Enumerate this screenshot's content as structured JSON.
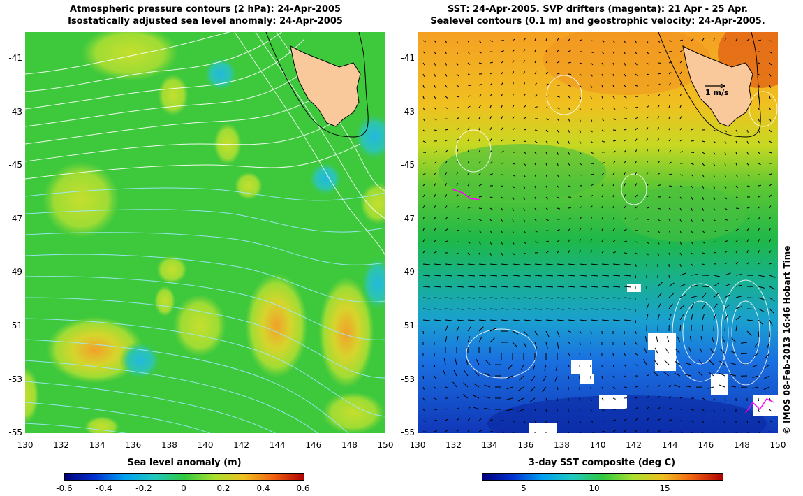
{
  "left": {
    "title_line1": "Atmospheric pressure contours (2 hPa): 24-Apr-2005",
    "title_line2": "Isostatically adjusted sea level anomaly: 24-Apr-2005",
    "colorbar_title": "Sea level anomaly (m)",
    "colorbar_labels": [
      "-0.6",
      "-0.4",
      "-0.2",
      "0",
      "0.2",
      "0.4",
      "0.6"
    ]
  },
  "right": {
    "title_line1": "SST: 24-Apr-2005. SVP drifters (magenta): 21 Apr - 25 Apr.",
    "title_line2": "Sealevel contours (0.1 m) and geostrophic velocity: 24-Apr-2005.",
    "colorbar_title": "3-day SST composite (deg C)",
    "colorbar_labels": [
      "5",
      "10",
      "15"
    ],
    "scale_arrow_label": "1 m/s"
  },
  "axes": {
    "lat_ticks": [
      "-41",
      "-43",
      "-45",
      "-47",
      "-49",
      "-51",
      "-53",
      "-55"
    ],
    "lon_ticks": [
      "130",
      "132",
      "134",
      "136",
      "138",
      "140",
      "142",
      "144",
      "146",
      "148",
      "150"
    ]
  },
  "copyright": "© IMOS 08-Feb-2013 16:46 Hobart Time",
  "map_data": {
    "lon_range": [
      130,
      150
    ],
    "lat_range": [
      -55,
      -40
    ],
    "region": "Tasmania and Southern Ocean",
    "sla_range": [
      -0.6,
      0.6
    ],
    "sst_range": [
      2,
      18
    ],
    "colors": {
      "land": "#f9c89b",
      "sla_background": "#3ec83c",
      "sst_warm": "#f0a020",
      "sst_cold": "#1a55d8",
      "drifters": "#ff00ff"
    }
  }
}
